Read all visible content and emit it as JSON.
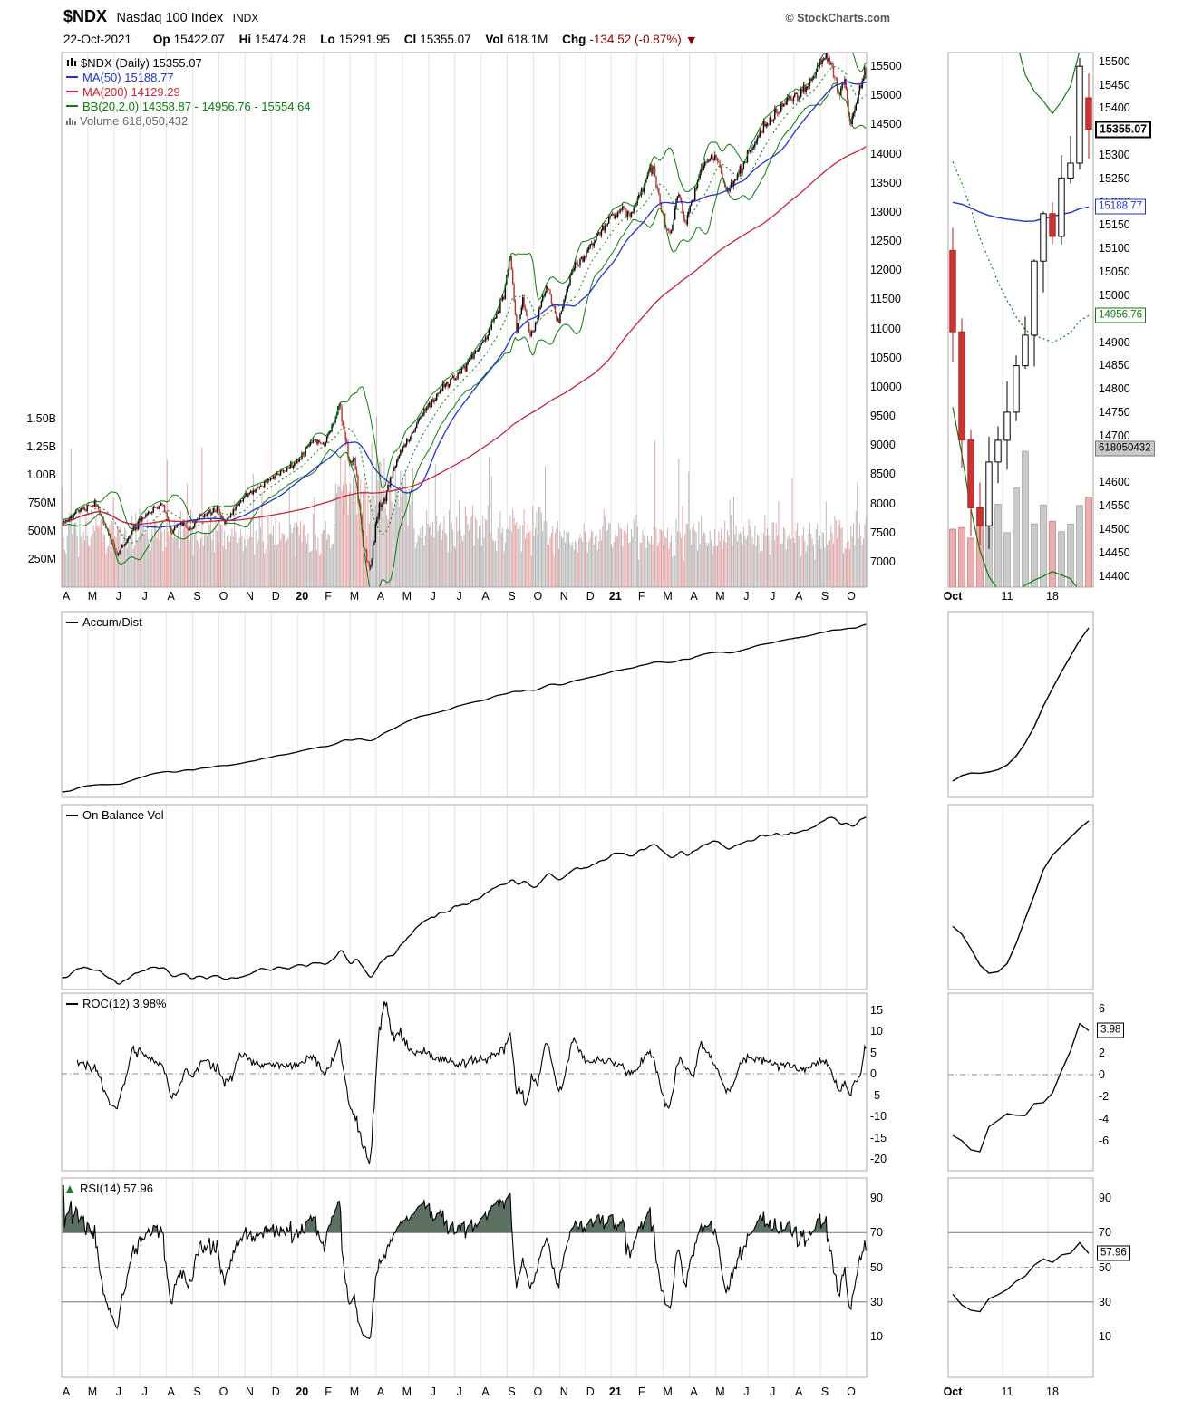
{
  "header": {
    "symbol": "$NDX",
    "name": "Nasdaq 100 Index",
    "exchange": "INDX",
    "copyright": "© StockCharts.com",
    "date": "22-Oct-2021",
    "fields": [
      {
        "label": "Op",
        "value": "15422.07"
      },
      {
        "label": "Hi",
        "value": "15474.28"
      },
      {
        "label": "Lo",
        "value": "15291.95"
      },
      {
        "label": "Cl",
        "value": "15355.07"
      },
      {
        "label": "Vol",
        "value": "618.1M"
      },
      {
        "label": "Chg",
        "value": "-134.52 (-0.87%)"
      }
    ],
    "change_arrow": "▼"
  },
  "legend": {
    "price": "$NDX (Daily) 15355.07",
    "ma50": "MA(50) 15188.77",
    "ma200": "MA(200) 14129.29",
    "bb": "BB(20,2.0) 14358.87 - 14956.76 - 15554.64",
    "volume": "Volume 618,050,432"
  },
  "panel_labels": {
    "accum": "Accum/Dist",
    "obv": "On Balance Vol",
    "roc": "ROC(12) 3.98%",
    "rsi": "RSI(14) 57.96"
  },
  "chart_data": {
    "type": "candlestick",
    "symbol": "$NDX",
    "period": "Daily",
    "date": "22-Oct-2021",
    "title": "$NDX Nasdaq 100 Index Daily with MA(50), MA(200), BB(20,2.0), Volume, Accum/Dist, On Balance Vol, ROC(12), RSI(14)",
    "last_day": {
      "open": 15422.07,
      "high": 15474.28,
      "low": 15291.95,
      "close": 15355.07,
      "volume": 618050432,
      "change": -134.52,
      "change_pct": -0.87,
      "prev_close": 15489.59
    },
    "indicators": {
      "ma50": 15188.77,
      "ma200": 14129.29,
      "bb_lower": 14358.87,
      "bb_mid": 14956.76,
      "bb_upper": 15554.64,
      "roc12": 3.98,
      "rsi14": 57.96
    },
    "days_total": 645,
    "months_span": 30.75,
    "x_month_labels": [
      "A",
      "M",
      "J",
      "J",
      "A",
      "S",
      "O",
      "N",
      "D",
      "20",
      "F",
      "M",
      "A",
      "M",
      "J",
      "J",
      "A",
      "S",
      "O",
      "N",
      "D",
      "21",
      "F",
      "M",
      "A",
      "M",
      "J",
      "J",
      "A",
      "S",
      "O"
    ],
    "price_anchors": [
      [
        0,
        7650
      ],
      [
        0.7,
        7900
      ],
      [
        1.3,
        7990
      ],
      [
        2.1,
        7120
      ],
      [
        3,
        7720
      ],
      [
        3.8,
        8010
      ],
      [
        4.2,
        7480
      ],
      [
        4.5,
        7690
      ],
      [
        4.8,
        7540
      ],
      [
        5.3,
        7760
      ],
      [
        5.9,
        7900
      ],
      [
        6.2,
        7670
      ],
      [
        7,
        8150
      ],
      [
        8,
        8420
      ],
      [
        9,
        8730
      ],
      [
        9.6,
        9100
      ],
      [
        10,
        8990
      ],
      [
        10.6,
        9690
      ],
      [
        11,
        8560
      ],
      [
        11.15,
        8850
      ],
      [
        11.5,
        7250
      ],
      [
        11.75,
        6830
      ],
      [
        12,
        7750
      ],
      [
        12.5,
        8350
      ],
      [
        13,
        8950
      ],
      [
        13.9,
        9600
      ],
      [
        14.5,
        9980
      ],
      [
        15,
        10150
      ],
      [
        15.6,
        10480
      ],
      [
        16.2,
        10850
      ],
      [
        16.9,
        11600
      ],
      [
        17.1,
        12350
      ],
      [
        17.35,
        10950
      ],
      [
        17.6,
        11480
      ],
      [
        17.9,
        10820
      ],
      [
        18.5,
        11750
      ],
      [
        18.95,
        11080
      ],
      [
        19.5,
        12050
      ],
      [
        20,
        12280
      ],
      [
        20.9,
        12880
      ],
      [
        21.4,
        13070
      ],
      [
        21.7,
        12950
      ],
      [
        22.2,
        13420
      ],
      [
        22.55,
        13800
      ],
      [
        22.95,
        12950
      ],
      [
        23.2,
        12610
      ],
      [
        23.55,
        13300
      ],
      [
        23.8,
        12790
      ],
      [
        24.4,
        13750
      ],
      [
        24.95,
        13960
      ],
      [
        25.4,
        13350
      ],
      [
        25.9,
        13690
      ],
      [
        26.5,
        14270
      ],
      [
        27,
        14550
      ],
      [
        27.7,
        14940
      ],
      [
        28.4,
        15100
      ],
      [
        28.95,
        15580
      ],
      [
        29.25,
        15690
      ],
      [
        29.7,
        15000
      ],
      [
        29.85,
        15320
      ],
      [
        30.1,
        14510
      ],
      [
        30.3,
        14790
      ],
      [
        30.5,
        15150
      ],
      [
        30.65,
        15490
      ],
      [
        30.75,
        15355
      ]
    ],
    "axes": {
      "price_ticks": [
        15500,
        15000,
        14500,
        14000,
        13500,
        13000,
        12500,
        12000,
        11500,
        11000,
        10500,
        10000,
        9500,
        9000,
        8500,
        8000,
        7500,
        7000
      ],
      "volume_ticks": [
        {
          "label": "1.50B",
          "value": 1500000000
        },
        {
          "label": "1.25B",
          "value": 1250000000
        },
        {
          "label": "1.00B",
          "value": 1000000000
        },
        {
          "label": "750M",
          "value": 750000000
        },
        {
          "label": "500M",
          "value": 500000000
        },
        {
          "label": "250M",
          "value": 250000000
        }
      ],
      "roc_ticks": [
        15,
        10,
        5,
        0,
        -5,
        -10,
        -15,
        -20
      ],
      "rsi_ticks": [
        90,
        70,
        50,
        30,
        10
      ],
      "rsi_lines": {
        "overbought": 70,
        "mid": 50,
        "oversold": 30
      }
    },
    "mini": {
      "days": 16,
      "x_labels": [
        {
          "label": "Oct",
          "day": 0
        },
        {
          "label": "11",
          "day": 6
        },
        {
          "label": "18",
          "day": 11
        }
      ],
      "price_ticks": [
        15500,
        15450,
        15400,
        15300,
        15250,
        15200,
        15150,
        15100,
        15050,
        15000,
        14900,
        14850,
        14800,
        14750,
        14700,
        14600,
        14550,
        14500,
        14450,
        14400
      ],
      "roc_ticks": [
        6,
        2,
        0,
        -2,
        -4,
        -6
      ],
      "rsi_ticks": [
        90,
        70,
        50,
        30,
        10
      ],
      "badges": {
        "close": "15355.07",
        "ma50": "15188.77",
        "bb_mid": "14956.76",
        "volume": "618050432",
        "roc": "3.98",
        "rsi": "57.96"
      }
    }
  }
}
